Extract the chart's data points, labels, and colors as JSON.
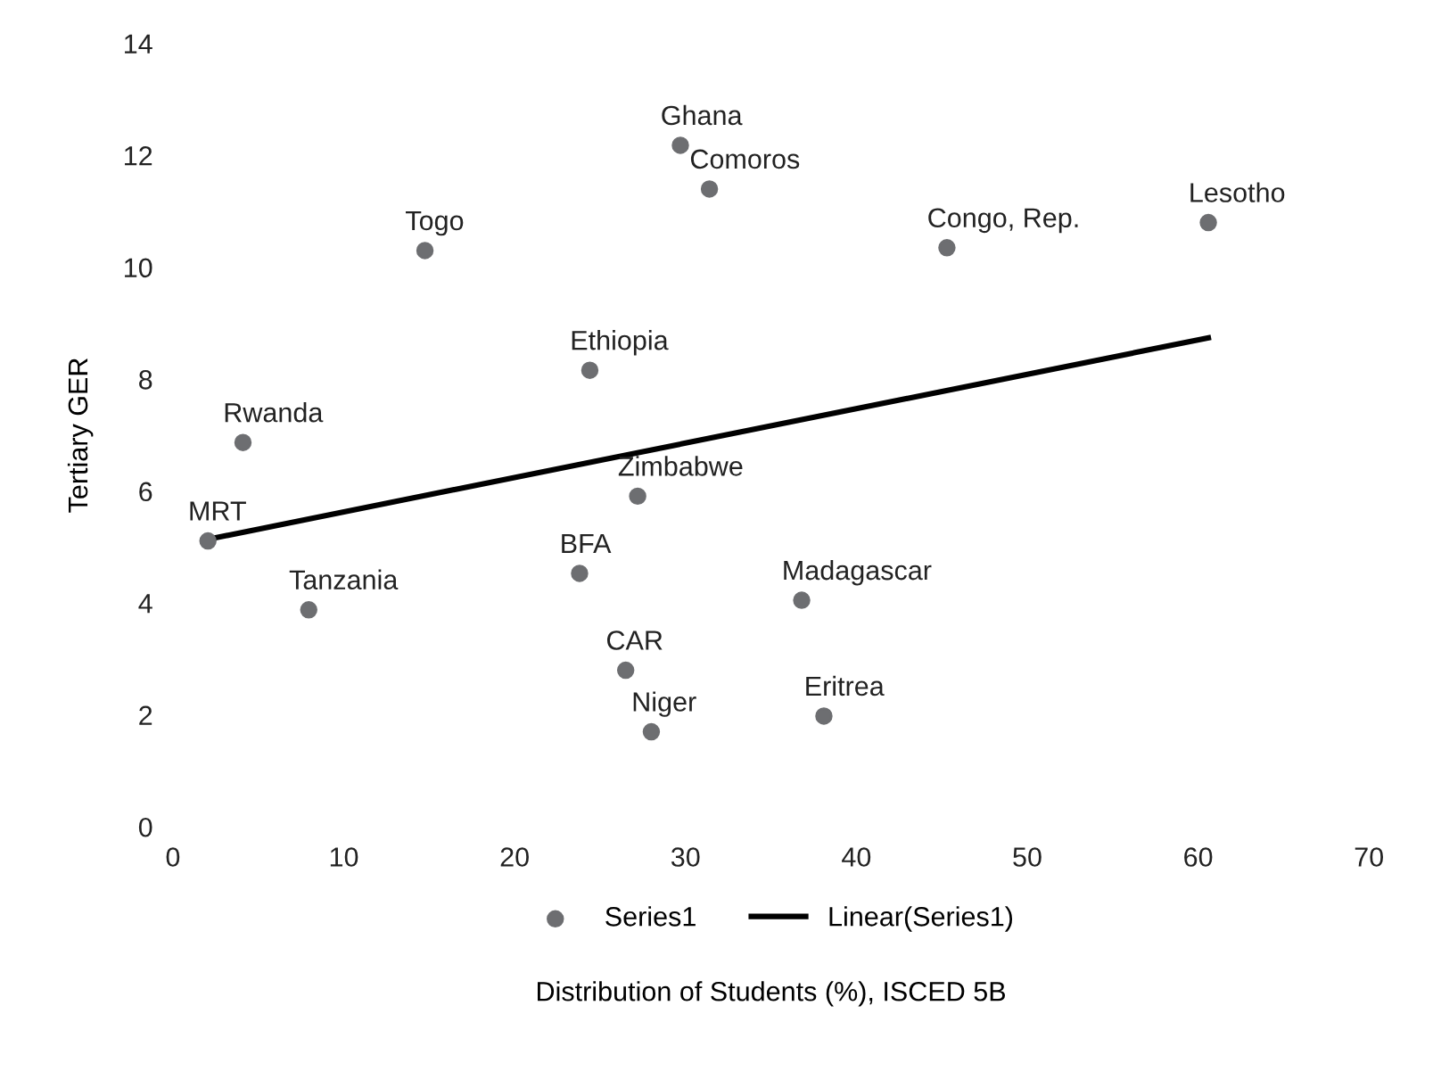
{
  "chart_data": {
    "type": "scatter",
    "xlabel": "Distribution of Students (%), ISCED 5B",
    "ylabel": "Tertiary GER",
    "xlim": [
      0,
      70
    ],
    "xticks": [
      0,
      10,
      20,
      30,
      40,
      50,
      60,
      70
    ],
    "ylim": [
      0,
      14
    ],
    "yticks": [
      0,
      2,
      4,
      6,
      8,
      10,
      12,
      14
    ],
    "grid": false,
    "legend": "bottom",
    "marker": "circle",
    "series": [
      {
        "name": "Series1",
        "color": "#6d6e71",
        "x": [
          2.05,
          4.1,
          7.95,
          14.75,
          24.4,
          23.8,
          27.2,
          26.5,
          28.0,
          29.7,
          31.4,
          45.3,
          60.6,
          36.8,
          38.1
        ],
        "values": [
          5.11,
          6.87,
          3.88,
          10.3,
          8.16,
          4.53,
          5.91,
          2.8,
          1.7,
          12.18,
          11.4,
          10.35,
          10.8,
          4.05,
          1.98
        ]
      },
      {
        "name": "Linear(Series1)",
        "type": "line",
        "color": "#000000",
        "line_style": "solid",
        "marker": "none",
        "x": [
          2.05,
          60.6
        ],
        "values": [
          5.14,
          8.74
        ]
      }
    ],
    "annotations": [
      {
        "text": "MRT",
        "x": 2.05,
        "y": 5.11
      },
      {
        "text": "Rwanda",
        "x": 4.1,
        "y": 6.87
      },
      {
        "text": "Tanzania",
        "x": 7.95,
        "y": 3.88
      },
      {
        "text": "Togo",
        "x": 14.75,
        "y": 10.3
      },
      {
        "text": "Ethiopia",
        "x": 24.4,
        "y": 8.16
      },
      {
        "text": "BFA",
        "x": 23.8,
        "y": 4.53
      },
      {
        "text": "Zimbabwe",
        "x": 27.2,
        "y": 5.91
      },
      {
        "text": "CAR",
        "x": 26.5,
        "y": 2.8
      },
      {
        "text": "Niger",
        "x": 28.0,
        "y": 1.7
      },
      {
        "text": "Ghana",
        "x": 29.7,
        "y": 12.18
      },
      {
        "text": "Comoros",
        "x": 31.4,
        "y": 11.4
      },
      {
        "text": "Congo, Rep.",
        "x": 45.3,
        "y": 10.35
      },
      {
        "text": "Lesotho",
        "x": 60.6,
        "y": 10.8
      },
      {
        "text": "Madagascar",
        "x": 36.8,
        "y": 4.05
      },
      {
        "text": "Eritrea",
        "x": 38.1,
        "y": 1.98
      }
    ]
  }
}
